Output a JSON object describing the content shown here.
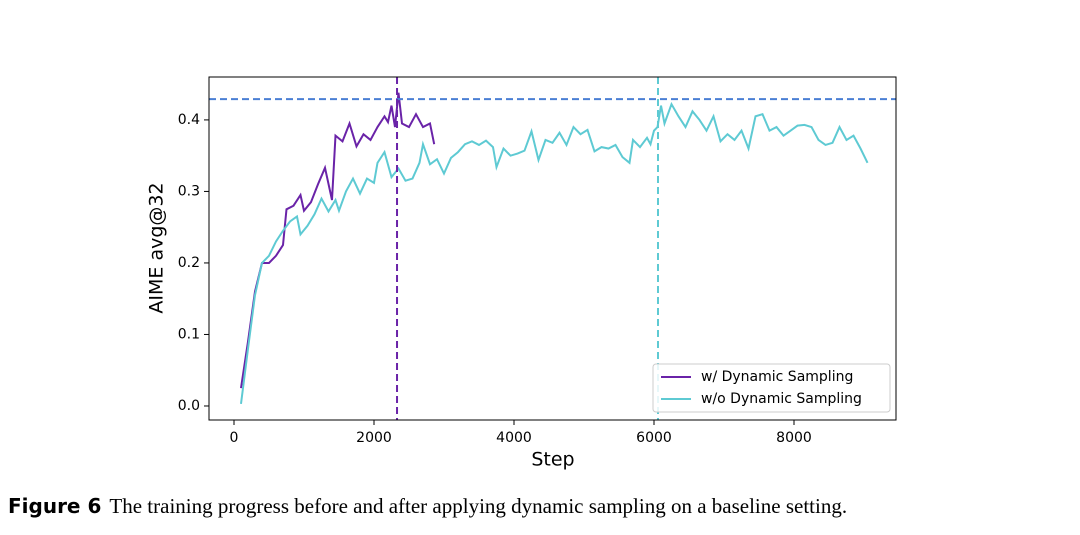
{
  "chart_data": {
    "type": "line",
    "xlabel": "Step",
    "ylabel": "AIME avg@32",
    "xlim": [
      -357,
      9457
    ],
    "ylim": [
      -0.0196,
      0.46
    ],
    "xticks": [
      0,
      2000,
      4000,
      6000,
      8000
    ],
    "yticks": [
      {
        "value": 0,
        "label": "0.0"
      },
      0.1,
      0.2,
      0.3,
      0.4
    ],
    "legend": "lower right",
    "hlines": [
      {
        "y": 0.429,
        "color": "#4a7fd4"
      }
    ],
    "vlines": [
      {
        "x": 2329,
        "color": "#6a23a8"
      },
      {
        "x": 6057,
        "color": "#5ecad3"
      }
    ],
    "series": [
      {
        "name": "w/ Dynamic Sampling",
        "color": "#6a23a8",
        "x": [
          100,
          200,
          300,
          400,
          500,
          600,
          700,
          750,
          850,
          950,
          1000,
          1100,
          1200,
          1300,
          1400,
          1450,
          1550,
          1650,
          1750,
          1850,
          1950,
          2050,
          2150,
          2200,
          2250,
          2300,
          2350,
          2400,
          2500,
          2600,
          2700,
          2800,
          2860
        ],
        "values": [
          0.025,
          0.09,
          0.16,
          0.2,
          0.2,
          0.21,
          0.225,
          0.275,
          0.28,
          0.295,
          0.273,
          0.285,
          0.31,
          0.333,
          0.288,
          0.378,
          0.37,
          0.395,
          0.363,
          0.38,
          0.372,
          0.39,
          0.405,
          0.397,
          0.42,
          0.39,
          0.438,
          0.395,
          0.39,
          0.408,
          0.39,
          0.395,
          0.366
        ]
      },
      {
        "name": "w/o Dynamic Sampling",
        "color": "#5ecad3",
        "x": [
          100,
          200,
          300,
          400,
          500,
          600,
          700,
          800,
          900,
          950,
          1050,
          1150,
          1250,
          1350,
          1450,
          1500,
          1600,
          1700,
          1800,
          1900,
          2000,
          2050,
          2150,
          2250,
          2350,
          2450,
          2550,
          2650,
          2700,
          2800,
          2900,
          3000,
          3100,
          3200,
          3300,
          3400,
          3500,
          3600,
          3700,
          3750,
          3850,
          3950,
          4050,
          4150,
          4250,
          4350,
          4450,
          4550,
          4650,
          4750,
          4850,
          4950,
          5050,
          5150,
          5250,
          5350,
          5450,
          5550,
          5650,
          5700,
          5800,
          5900,
          5950,
          6000,
          6050,
          6100,
          6150,
          6250,
          6350,
          6450,
          6550,
          6650,
          6750,
          6850,
          6950,
          7050,
          7150,
          7250,
          7350,
          7450,
          7550,
          7650,
          7750,
          7850,
          7950,
          8050,
          8150,
          8250,
          8350,
          8450,
          8550,
          8650,
          8750,
          8850,
          8950,
          9050
        ],
        "values": [
          0.003,
          0.08,
          0.155,
          0.2,
          0.21,
          0.23,
          0.245,
          0.258,
          0.265,
          0.24,
          0.252,
          0.268,
          0.29,
          0.272,
          0.288,
          0.273,
          0.3,
          0.318,
          0.297,
          0.318,
          0.312,
          0.34,
          0.355,
          0.32,
          0.332,
          0.315,
          0.318,
          0.34,
          0.366,
          0.338,
          0.345,
          0.325,
          0.347,
          0.355,
          0.366,
          0.37,
          0.365,
          0.371,
          0.362,
          0.334,
          0.36,
          0.35,
          0.353,
          0.357,
          0.384,
          0.344,
          0.372,
          0.368,
          0.382,
          0.365,
          0.39,
          0.38,
          0.386,
          0.356,
          0.362,
          0.36,
          0.365,
          0.348,
          0.34,
          0.372,
          0.362,
          0.375,
          0.366,
          0.385,
          0.39,
          0.42,
          0.395,
          0.422,
          0.405,
          0.39,
          0.412,
          0.4,
          0.385,
          0.405,
          0.37,
          0.38,
          0.372,
          0.385,
          0.36,
          0.405,
          0.408,
          0.385,
          0.39,
          0.378,
          0.385,
          0.392,
          0.393,
          0.39,
          0.372,
          0.365,
          0.368,
          0.39,
          0.372,
          0.378,
          0.36,
          0.34
        ]
      }
    ]
  },
  "caption": {
    "label": "Figure 6",
    "text": "The training progress before and after applying dynamic sampling on a baseline setting."
  }
}
